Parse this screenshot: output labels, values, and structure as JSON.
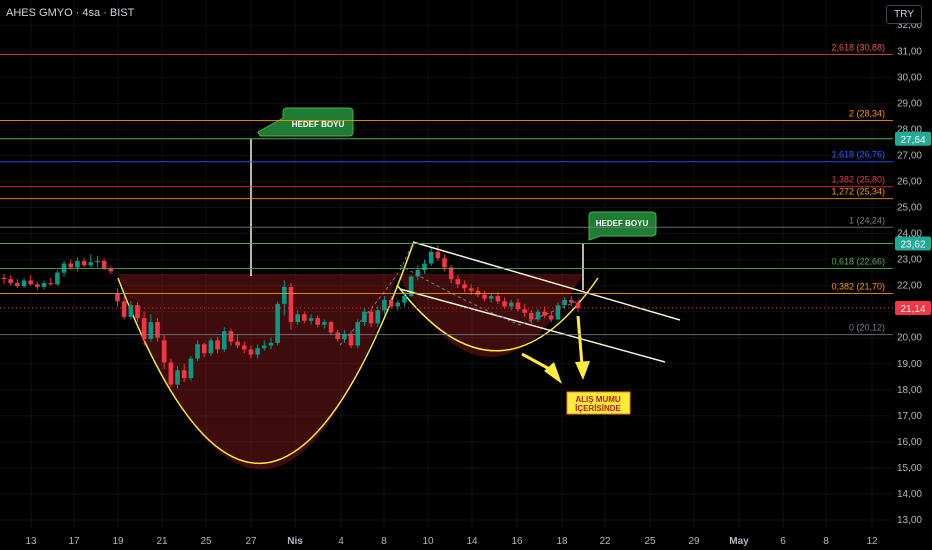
{
  "header": {
    "title": "AHES GMYO · 4sa · BIST",
    "currency": "TRY"
  },
  "chart_data": {
    "type": "candlestick",
    "ylim": [
      12.7,
      32.5
    ],
    "y_ticks": [
      "13,00",
      "14,00",
      "15,00",
      "16,00",
      "17,00",
      "18,00",
      "19,00",
      "20,00",
      "21,00",
      "22,00",
      "23,00",
      "24,00",
      "25,00",
      "26,00",
      "27,00",
      "28,00",
      "29,00",
      "30,00",
      "31,00",
      "32,00"
    ],
    "x_ticks": [
      "13",
      "17",
      "19",
      "21",
      "25",
      "27",
      "Nis",
      "4",
      "8",
      "10",
      "14",
      "16",
      "18",
      "22",
      "25",
      "29",
      "May",
      "6",
      "8",
      "12"
    ],
    "fib_levels": [
      {
        "label": "2,618 (30,88)",
        "value": 30.88,
        "color": "#ef5350"
      },
      {
        "label": "2 (28,34)",
        "value": 28.34,
        "color": "#ff9800"
      },
      {
        "label": "1,618 (26,76)",
        "value": 26.76,
        "color": "#2962ff"
      },
      {
        "label": "1,382 (25,80)",
        "value": 25.8,
        "color": "#f23645"
      },
      {
        "label": "1,272 (25,34)",
        "value": 25.34,
        "color": "#ff9800"
      },
      {
        "label": "1 (24,24)",
        "value": 24.24,
        "color": "#787b86"
      },
      {
        "label": "0,618 (22,66)",
        "value": 22.66,
        "color": "#4caf50"
      },
      {
        "label": "0,382 (21,70)",
        "value": 21.7,
        "color": "#ff9800"
      },
      {
        "label": "0 (20,12)",
        "value": 20.12,
        "color": "#787b86"
      }
    ],
    "price_tags": [
      {
        "label": "27,64",
        "value": 27.64,
        "color": "#22ab94"
      },
      {
        "label": "23,62",
        "value": 23.62,
        "color": "#22ab94"
      },
      {
        "label": "21,14",
        "value": 21.14,
        "color": "#f23645"
      }
    ],
    "target_price": 27.64,
    "last_price": 21.14,
    "neckline_price": 22.45,
    "annotations": {
      "target_1": "HEDEF BOYU",
      "target_2": "HEDEF BOYU",
      "buy_line1": "ALIŞ MUMU",
      "buy_line2": "İÇERİSİNDE"
    },
    "candles": [
      [
        22.3,
        22.45,
        22.05,
        22.25
      ],
      [
        22.25,
        22.4,
        22.0,
        22.1
      ],
      [
        22.1,
        22.25,
        21.9,
        21.98
      ],
      [
        21.98,
        22.3,
        21.9,
        22.2
      ],
      [
        22.2,
        22.4,
        22.0,
        22.05
      ],
      [
        22.05,
        22.15,
        21.85,
        21.95
      ],
      [
        21.95,
        22.2,
        21.85,
        22.1
      ],
      [
        22.1,
        22.3,
        22.0,
        22.05
      ],
      [
        22.05,
        22.6,
        22.0,
        22.5
      ],
      [
        22.5,
        22.95,
        22.35,
        22.85
      ],
      [
        22.85,
        23.0,
        22.6,
        22.7
      ],
      [
        22.7,
        23.1,
        22.55,
        22.95
      ],
      [
        22.95,
        23.05,
        22.7,
        22.78
      ],
      [
        22.78,
        23.2,
        22.7,
        22.9
      ],
      [
        22.9,
        23.15,
        22.7,
        22.95
      ],
      [
        22.95,
        23.05,
        22.6,
        22.65
      ],
      [
        22.65,
        22.75,
        22.45,
        22.55
      ],
      [
        21.7,
        21.9,
        21.2,
        21.4
      ],
      [
        21.4,
        21.6,
        20.7,
        20.8
      ],
      [
        20.8,
        21.4,
        20.7,
        21.25
      ],
      [
        21.25,
        21.35,
        20.6,
        20.75
      ],
      [
        20.75,
        21.0,
        19.7,
        19.95
      ],
      [
        19.95,
        20.9,
        19.85,
        20.6
      ],
      [
        20.6,
        20.75,
        19.85,
        20.0
      ],
      [
        19.9,
        20.1,
        18.8,
        19.05
      ],
      [
        19.05,
        19.2,
        18.1,
        18.2
      ],
      [
        18.2,
        18.9,
        18.05,
        18.75
      ],
      [
        18.75,
        19.0,
        18.3,
        18.45
      ],
      [
        18.45,
        19.3,
        18.35,
        19.2
      ],
      [
        19.2,
        19.9,
        19.1,
        19.75
      ],
      [
        19.75,
        19.8,
        19.25,
        19.4
      ],
      [
        19.4,
        20.0,
        19.3,
        19.9
      ],
      [
        19.9,
        20.05,
        19.4,
        19.55
      ],
      [
        19.55,
        20.4,
        19.45,
        20.25
      ],
      [
        20.25,
        20.35,
        19.7,
        19.85
      ],
      [
        19.85,
        20.1,
        19.6,
        19.7
      ],
      [
        19.7,
        19.85,
        19.4,
        19.55
      ],
      [
        19.55,
        19.7,
        19.2,
        19.35
      ],
      [
        19.35,
        19.75,
        19.2,
        19.6
      ],
      [
        19.6,
        19.9,
        19.5,
        19.7
      ],
      [
        19.7,
        20.0,
        19.55,
        19.8
      ],
      [
        19.8,
        21.4,
        19.7,
        21.3
      ],
      [
        21.3,
        22.2,
        20.85,
        21.95
      ],
      [
        21.95,
        22.1,
        20.3,
        20.6
      ],
      [
        20.6,
        21.05,
        20.5,
        20.9
      ],
      [
        20.9,
        21.0,
        20.55,
        20.65
      ],
      [
        20.65,
        20.9,
        20.5,
        20.75
      ],
      [
        20.75,
        20.85,
        20.4,
        20.5
      ],
      [
        20.5,
        20.7,
        20.35,
        20.6
      ],
      [
        20.6,
        20.65,
        20.1,
        20.2
      ],
      [
        20.2,
        20.3,
        19.85,
        19.95
      ],
      [
        19.95,
        20.3,
        19.8,
        20.15
      ],
      [
        20.15,
        20.25,
        19.6,
        19.7
      ],
      [
        19.7,
        20.7,
        19.6,
        20.6
      ],
      [
        20.6,
        21.15,
        20.45,
        21.0
      ],
      [
        21.0,
        21.1,
        20.4,
        20.55
      ],
      [
        20.55,
        21.2,
        20.4,
        21.05
      ],
      [
        21.05,
        21.6,
        20.9,
        21.45
      ],
      [
        21.45,
        21.6,
        21.1,
        21.2
      ],
      [
        21.2,
        21.45,
        21.05,
        21.35
      ],
      [
        21.35,
        21.75,
        21.2,
        21.6
      ],
      [
        21.6,
        22.4,
        21.55,
        22.35
      ],
      [
        22.35,
        22.8,
        22.2,
        22.6
      ],
      [
        22.6,
        23.0,
        22.45,
        22.85
      ],
      [
        22.85,
        23.45,
        22.75,
        23.3
      ],
      [
        23.3,
        23.55,
        22.95,
        23.05
      ],
      [
        23.05,
        23.2,
        22.55,
        22.7
      ],
      [
        22.7,
        22.8,
        22.1,
        22.25
      ],
      [
        22.25,
        22.4,
        21.9,
        22.05
      ],
      [
        22.05,
        22.2,
        21.75,
        21.9
      ],
      [
        21.9,
        22.05,
        21.65,
        21.8
      ],
      [
        21.8,
        21.95,
        21.55,
        21.65
      ],
      [
        21.65,
        21.8,
        21.4,
        21.5
      ],
      [
        21.5,
        21.7,
        21.35,
        21.6
      ],
      [
        21.6,
        21.75,
        21.3,
        21.4
      ],
      [
        21.4,
        21.55,
        21.1,
        21.2
      ],
      [
        21.2,
        21.45,
        21.05,
        21.35
      ],
      [
        21.35,
        21.5,
        21.0,
        21.1
      ],
      [
        21.1,
        21.3,
        20.8,
        20.95
      ],
      [
        20.95,
        21.05,
        20.55,
        20.7
      ],
      [
        20.7,
        21.1,
        20.6,
        21.0
      ],
      [
        21.0,
        21.2,
        20.75,
        20.85
      ],
      [
        20.85,
        21.0,
        20.6,
        20.7
      ],
      [
        20.7,
        21.35,
        20.65,
        21.25
      ],
      [
        21.25,
        21.55,
        21.1,
        21.45
      ],
      [
        21.45,
        21.6,
        21.2,
        21.35
      ],
      [
        21.35,
        21.45,
        21.0,
        21.14
      ]
    ]
  }
}
